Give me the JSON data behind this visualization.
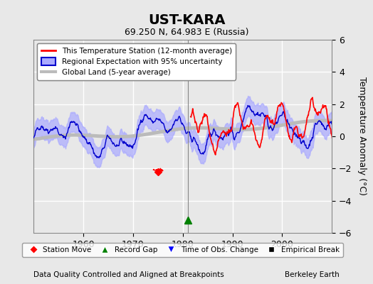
{
  "title": "UST-KARA",
  "subtitle": "69.250 N, 64.983 E (Russia)",
  "ylabel": "Temperature Anomaly (°C)",
  "xlabel_note": "Data Quality Controlled and Aligned at Breakpoints",
  "attribution": "Berkeley Earth",
  "ylim": [
    -6,
    6
  ],
  "xlim": [
    1950,
    2010
  ],
  "xticks": [
    1960,
    1970,
    1980,
    1990,
    2000
  ],
  "yticks": [
    -6,
    -4,
    -2,
    0,
    2,
    4,
    6
  ],
  "bg_color": "#e8e8e8",
  "plot_bg_color": "#e8e8e8",
  "grid_color": "white",
  "station_color": "#ff0000",
  "regional_color": "#0000cc",
  "regional_fill_color": "#aaaaff",
  "global_color": "#bbbbbb",
  "global_lw": 3.5,
  "vline_x": 1981,
  "vline_color": "#888888",
  "record_gap_x": 1981,
  "record_gap_y": -5.2,
  "station_move_x": 1975,
  "station_move_y": -2.2,
  "legend_labels": [
    "This Temperature Station (12-month average)",
    "Regional Expectation with 95% uncertainty",
    "Global Land (5-year average)"
  ],
  "legend2_labels": [
    "Station Move",
    "Record Gap",
    "Time of Obs. Change",
    "Empirical Break"
  ]
}
